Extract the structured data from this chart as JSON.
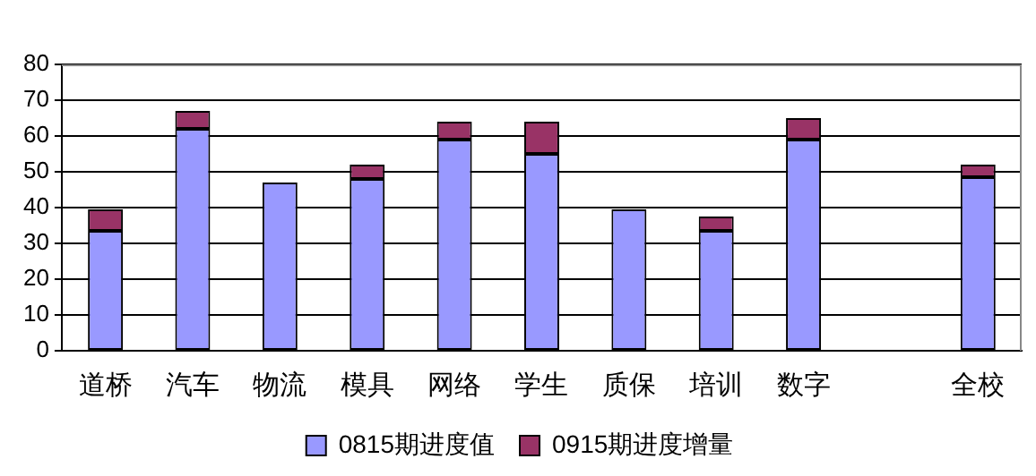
{
  "chart_data": {
    "type": "bar",
    "stacked": true,
    "categories": [
      "道桥",
      "汽车",
      "物流",
      "模具",
      "网络",
      "学生",
      "质保",
      "培训",
      "数字",
      null,
      "全校"
    ],
    "series": [
      {
        "name": "0815期进度值",
        "color": "#9999ff",
        "values": [
          33.5,
          62,
          47,
          48,
          59,
          55,
          39.5,
          33.5,
          59,
          null,
          48.5
        ]
      },
      {
        "name": "0915期进度增量",
        "color": "#993366",
        "values": [
          6,
          5,
          0,
          4,
          5,
          9,
          0,
          4,
          6,
          null,
          3.5
        ]
      }
    ],
    "ylim": [
      0,
      80
    ],
    "yticks": [
      0,
      10,
      20,
      30,
      40,
      50,
      60,
      70,
      80
    ],
    "grid": "y",
    "legend": "bottom"
  }
}
